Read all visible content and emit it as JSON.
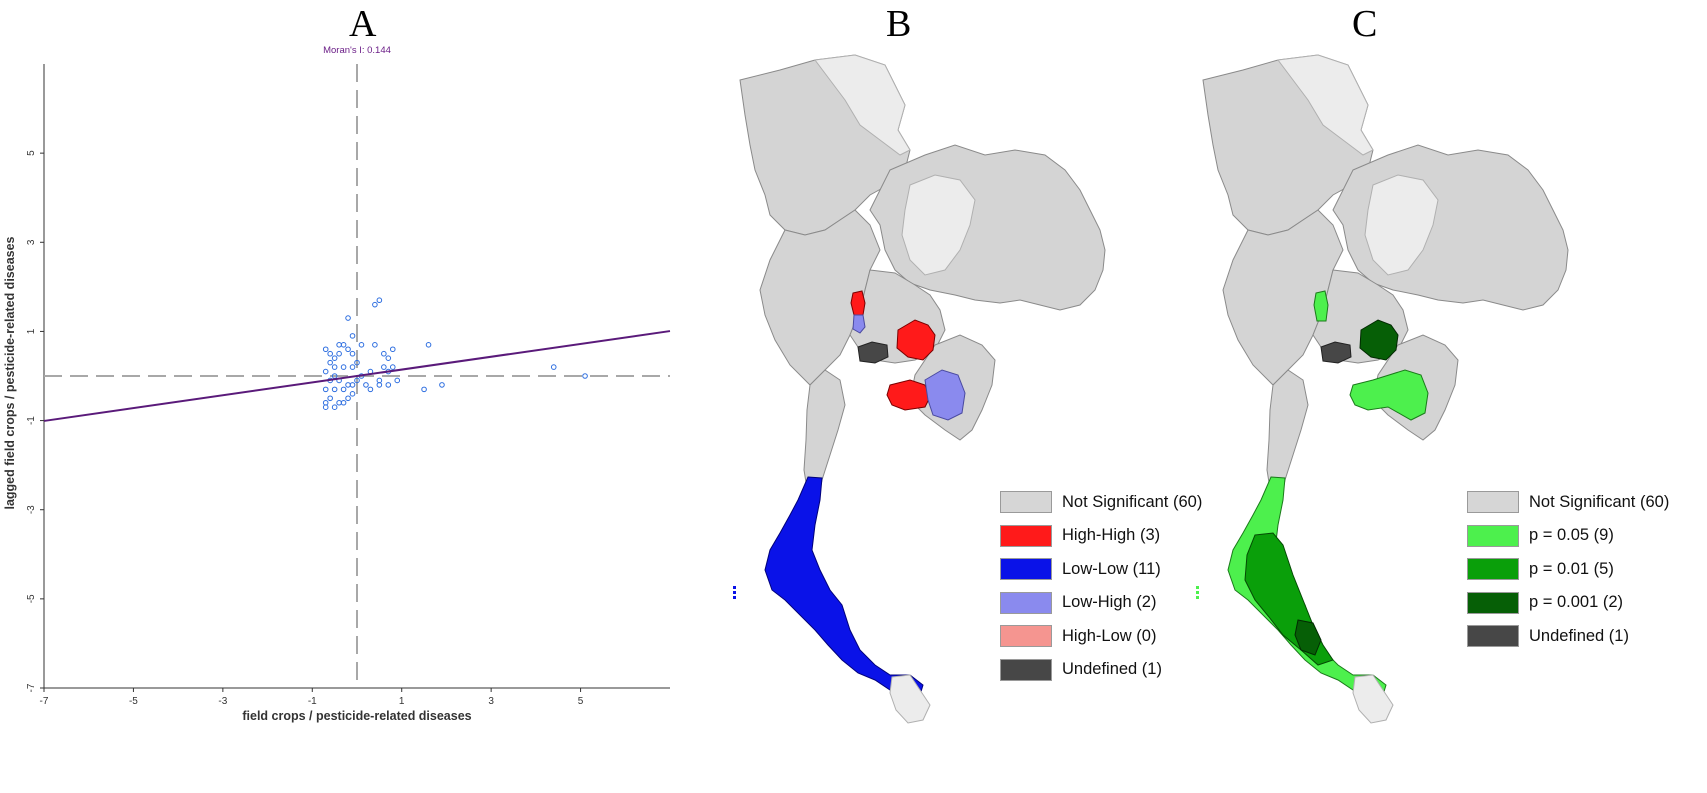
{
  "panels": {
    "a": {
      "letter": "A"
    },
    "b": {
      "letter": "B"
    },
    "c": {
      "letter": "C"
    }
  },
  "chart_data": {
    "type": "scatter",
    "annotation": "Moran's I: 0.144",
    "xlabel": "field crops / pesticide-related diseases",
    "ylabel": "lagged  field crops / pesticide-related diseases",
    "xlim": [
      -7,
      7
    ],
    "ylim": [
      -7,
      7
    ],
    "xticks": [
      -7,
      -5,
      -3,
      -1,
      1,
      3,
      5
    ],
    "yticks": [
      -7,
      -5,
      -3,
      -1,
      1,
      3,
      5
    ],
    "reference_lines": {
      "x": 0,
      "y": 0
    },
    "regression": {
      "slope": 0.144,
      "intercept": 0
    },
    "points": [
      [
        -0.7,
        0.6
      ],
      [
        -0.6,
        0.5
      ],
      [
        -0.5,
        0.4
      ],
      [
        -0.4,
        0.7
      ],
      [
        -0.3,
        0.7
      ],
      [
        -0.6,
        0.3
      ],
      [
        -0.5,
        0.2
      ],
      [
        -0.7,
        0.1
      ],
      [
        -0.4,
        0.5
      ],
      [
        -0.2,
        0.6
      ],
      [
        -0.5,
        0.0
      ],
      [
        -0.3,
        0.2
      ],
      [
        -0.6,
        -0.1
      ],
      [
        -0.4,
        -0.1
      ],
      [
        -0.2,
        -0.2
      ],
      [
        -0.7,
        -0.3
      ],
      [
        -0.5,
        -0.3
      ],
      [
        -0.3,
        -0.3
      ],
      [
        -0.6,
        -0.5
      ],
      [
        -0.4,
        -0.6
      ],
      [
        -0.7,
        -0.6
      ],
      [
        -0.5,
        -0.7
      ],
      [
        -0.3,
        -0.6
      ],
      [
        -0.2,
        -0.5
      ],
      [
        -0.1,
        -0.4
      ],
      [
        -0.7,
        -0.7
      ],
      [
        -0.1,
        0.2
      ],
      [
        0.1,
        0.0
      ],
      [
        0.0,
        -0.1
      ],
      [
        -0.1,
        -0.2
      ],
      [
        -0.2,
        1.3
      ],
      [
        -0.1,
        0.9
      ],
      [
        0.1,
        0.7
      ],
      [
        -0.1,
        0.5
      ],
      [
        0.0,
        0.3
      ],
      [
        0.4,
        1.6
      ],
      [
        0.5,
        1.7
      ],
      [
        0.4,
        0.7
      ],
      [
        0.6,
        0.5
      ],
      [
        0.7,
        0.4
      ],
      [
        0.8,
        0.6
      ],
      [
        0.6,
        0.2
      ],
      [
        0.8,
        0.2
      ],
      [
        0.5,
        -0.1
      ],
      [
        0.7,
        -0.2
      ],
      [
        0.9,
        -0.1
      ],
      [
        0.3,
        -0.3
      ],
      [
        0.2,
        -0.2
      ],
      [
        1.6,
        0.7
      ],
      [
        1.5,
        -0.3
      ],
      [
        1.9,
        -0.2
      ],
      [
        4.4,
        0.2
      ],
      [
        5.1,
        0.0
      ],
      [
        0.7,
        0.1
      ],
      [
        0.3,
        0.1
      ],
      [
        0.5,
        -0.2
      ]
    ]
  },
  "maps": {
    "b": {
      "legend": [
        {
          "label": "Not Significant (60)",
          "color": "#d6d6d6"
        },
        {
          "label": "High-High (3)",
          "color": "#ff1a1a"
        },
        {
          "label": "Low-Low (11)",
          "color": "#0a12e8"
        },
        {
          "label": "Low-High (2)",
          "color": "#8a8aee"
        },
        {
          "label": "High-Low (0)",
          "color": "#f59590"
        },
        {
          "label": "Undefined (1)",
          "color": "#474747"
        }
      ]
    },
    "c": {
      "legend": [
        {
          "label": "Not Significant (60)",
          "color": "#d6d6d6"
        },
        {
          "label": "p = 0.05 (9)",
          "color": "#4df04d"
        },
        {
          "label": "p = 0.01 (5)",
          "color": "#0a9f0a"
        },
        {
          "label": "p = 0.001 (2)",
          "color": "#065f06"
        },
        {
          "label": "Undefined (1)",
          "color": "#474747"
        }
      ]
    }
  }
}
